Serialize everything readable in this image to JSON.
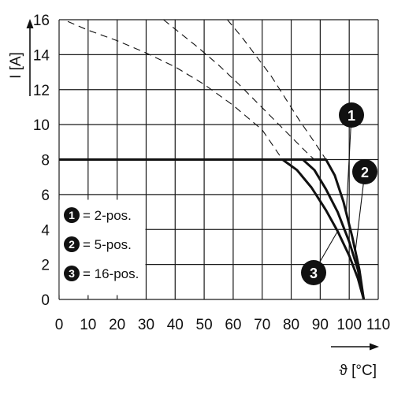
{
  "chart_data": {
    "type": "line",
    "xlabel": "ϑ [°C]",
    "ylabel": "I [A]",
    "xlim": [
      0,
      110
    ],
    "ylim": [
      0,
      16
    ],
    "x_ticks": [
      0,
      10,
      20,
      30,
      40,
      50,
      60,
      70,
      80,
      90,
      100,
      110
    ],
    "y_ticks": [
      0,
      2,
      4,
      6,
      8,
      10,
      12,
      14,
      16
    ],
    "grid": true,
    "legend_placement": "bottom-left",
    "legend": [
      {
        "number": "1",
        "label": "= 2-pos."
      },
      {
        "number": "2",
        "label": "= 5-pos."
      },
      {
        "number": "3",
        "label": "= 16-pos."
      }
    ],
    "series": [
      {
        "badge": "1",
        "style": "solid",
        "x": [
          0,
          10,
          20,
          30,
          40,
          50,
          60,
          70,
          80,
          90,
          92,
          95,
          98,
          101,
          103.5,
          105
        ],
        "y": [
          8,
          8,
          8,
          8,
          8,
          8,
          8,
          8,
          8,
          8,
          8,
          7.1,
          5.6,
          3.6,
          1.7,
          0
        ]
      },
      {
        "badge": "2",
        "style": "solid",
        "x": [
          0,
          10,
          20,
          30,
          40,
          50,
          60,
          70,
          80,
          84,
          88,
          92,
          96,
          100,
          103,
          105
        ],
        "y": [
          8,
          8,
          8,
          8,
          8,
          8,
          8,
          8,
          8,
          8,
          7.4,
          6.3,
          5.0,
          3.3,
          1.7,
          0
        ]
      },
      {
        "badge": "3",
        "style": "solid",
        "x": [
          0,
          10,
          20,
          30,
          40,
          50,
          60,
          70,
          77,
          82,
          87,
          92,
          96,
          100,
          103,
          105
        ],
        "y": [
          8,
          8,
          8,
          8,
          8,
          8,
          8,
          8,
          8,
          7.4,
          6.4,
          5.1,
          3.9,
          2.5,
          1.2,
          0
        ]
      },
      {
        "badge": "1",
        "style": "dashed",
        "x": [
          58,
          63,
          68,
          73,
          78,
          83,
          88,
          92
        ],
        "y": [
          16,
          15,
          13.9,
          12.8,
          11.5,
          10.2,
          9.0,
          8.0
        ]
      },
      {
        "badge": "2",
        "style": "dashed",
        "x": [
          36,
          42,
          48,
          55,
          62,
          68,
          74,
          80,
          86,
          88
        ],
        "y": [
          16,
          15.2,
          14.4,
          13.4,
          12.3,
          11.3,
          10.3,
          9.3,
          8.3,
          8.0
        ]
      },
      {
        "badge": "3",
        "style": "dashed",
        "x": [
          3,
          10,
          20,
          30,
          40,
          50,
          60,
          70,
          77
        ],
        "y": [
          15.9,
          15.4,
          14.8,
          14.1,
          13.3,
          12.3,
          11.1,
          9.7,
          8.0
        ]
      }
    ]
  }
}
